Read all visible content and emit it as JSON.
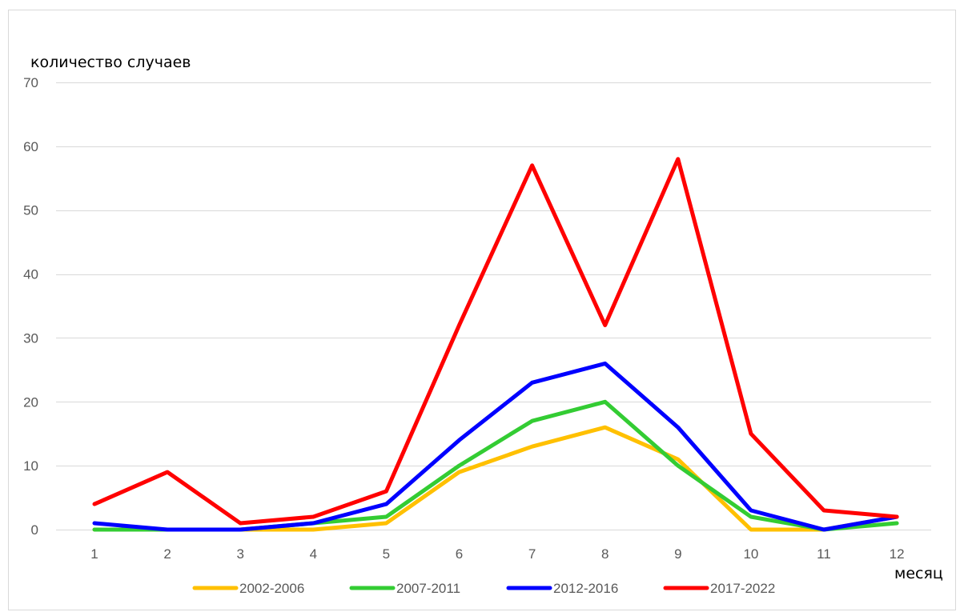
{
  "chart_data": {
    "type": "line",
    "x": [
      1,
      2,
      3,
      4,
      5,
      6,
      7,
      8,
      9,
      10,
      11,
      12
    ],
    "series": [
      {
        "name": "2002-2006",
        "color": "#FFC000",
        "values": [
          0,
          0,
          0,
          0,
          1,
          9,
          13,
          16,
          11,
          0,
          0,
          2
        ]
      },
      {
        "name": "2007-2011",
        "color": "#33CC33",
        "values": [
          0,
          0,
          0,
          1,
          2,
          10,
          17,
          20,
          10,
          2,
          0,
          1
        ]
      },
      {
        "name": "2012-2016",
        "color": "#0000FF",
        "values": [
          1,
          0,
          0,
          1,
          4,
          14,
          23,
          26,
          16,
          3,
          0,
          2
        ]
      },
      {
        "name": "2017-2022",
        "color": "#FF0000",
        "values": [
          4,
          9,
          1,
          2,
          6,
          32,
          57,
          32,
          58,
          15,
          3,
          2
        ]
      }
    ],
    "title": "",
    "xlabel": "месяц",
    "ylabel": "количество случаев",
    "ylim": [
      0,
      70
    ],
    "yticks": [
      0,
      10,
      20,
      30,
      40,
      50,
      60,
      70
    ],
    "grid": true,
    "legend": "bottom"
  }
}
